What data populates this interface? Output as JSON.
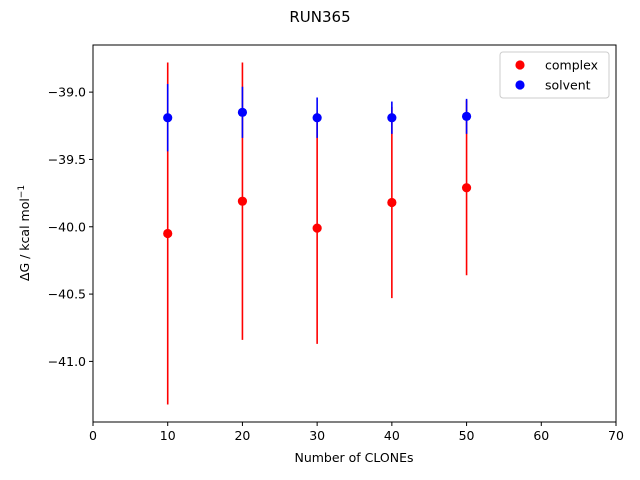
{
  "chart_data": {
    "type": "scatter",
    "title": "RUN365",
    "xlabel": "Number of CLONEs",
    "ylabel": "ΔG / kcal mol",
    "ylabel_superscript": "−1",
    "xlim": [
      0,
      70
    ],
    "ylim": [
      -41.45,
      -38.65
    ],
    "xticks": [
      0,
      10,
      20,
      30,
      40,
      50,
      60,
      70
    ],
    "xtick_labels": [
      "0",
      "10",
      "20",
      "30",
      "40",
      "50",
      "60",
      "70"
    ],
    "yticks": [
      -41.0,
      -40.5,
      -40.0,
      -39.5,
      -39.0
    ],
    "ytick_labels": [
      "−41.0",
      "−40.5",
      "−40.0",
      "−39.5",
      "−39.0"
    ],
    "grid": false,
    "legend_position": "top-right",
    "series": [
      {
        "name": "complex",
        "color": "#ff0000",
        "x": [
          10,
          20,
          30,
          40,
          50
        ],
        "y": [
          -40.05,
          -39.81,
          -40.01,
          -39.82,
          -39.71
        ],
        "err": [
          1.27,
          1.03,
          0.86,
          0.71,
          0.65
        ]
      },
      {
        "name": "solvent",
        "color": "#0000ff",
        "x": [
          10,
          20,
          30,
          40,
          50
        ],
        "y": [
          -39.19,
          -39.15,
          -39.19,
          -39.19,
          -39.18
        ],
        "err": [
          0.25,
          0.19,
          0.15,
          0.12,
          0.13
        ]
      }
    ]
  }
}
